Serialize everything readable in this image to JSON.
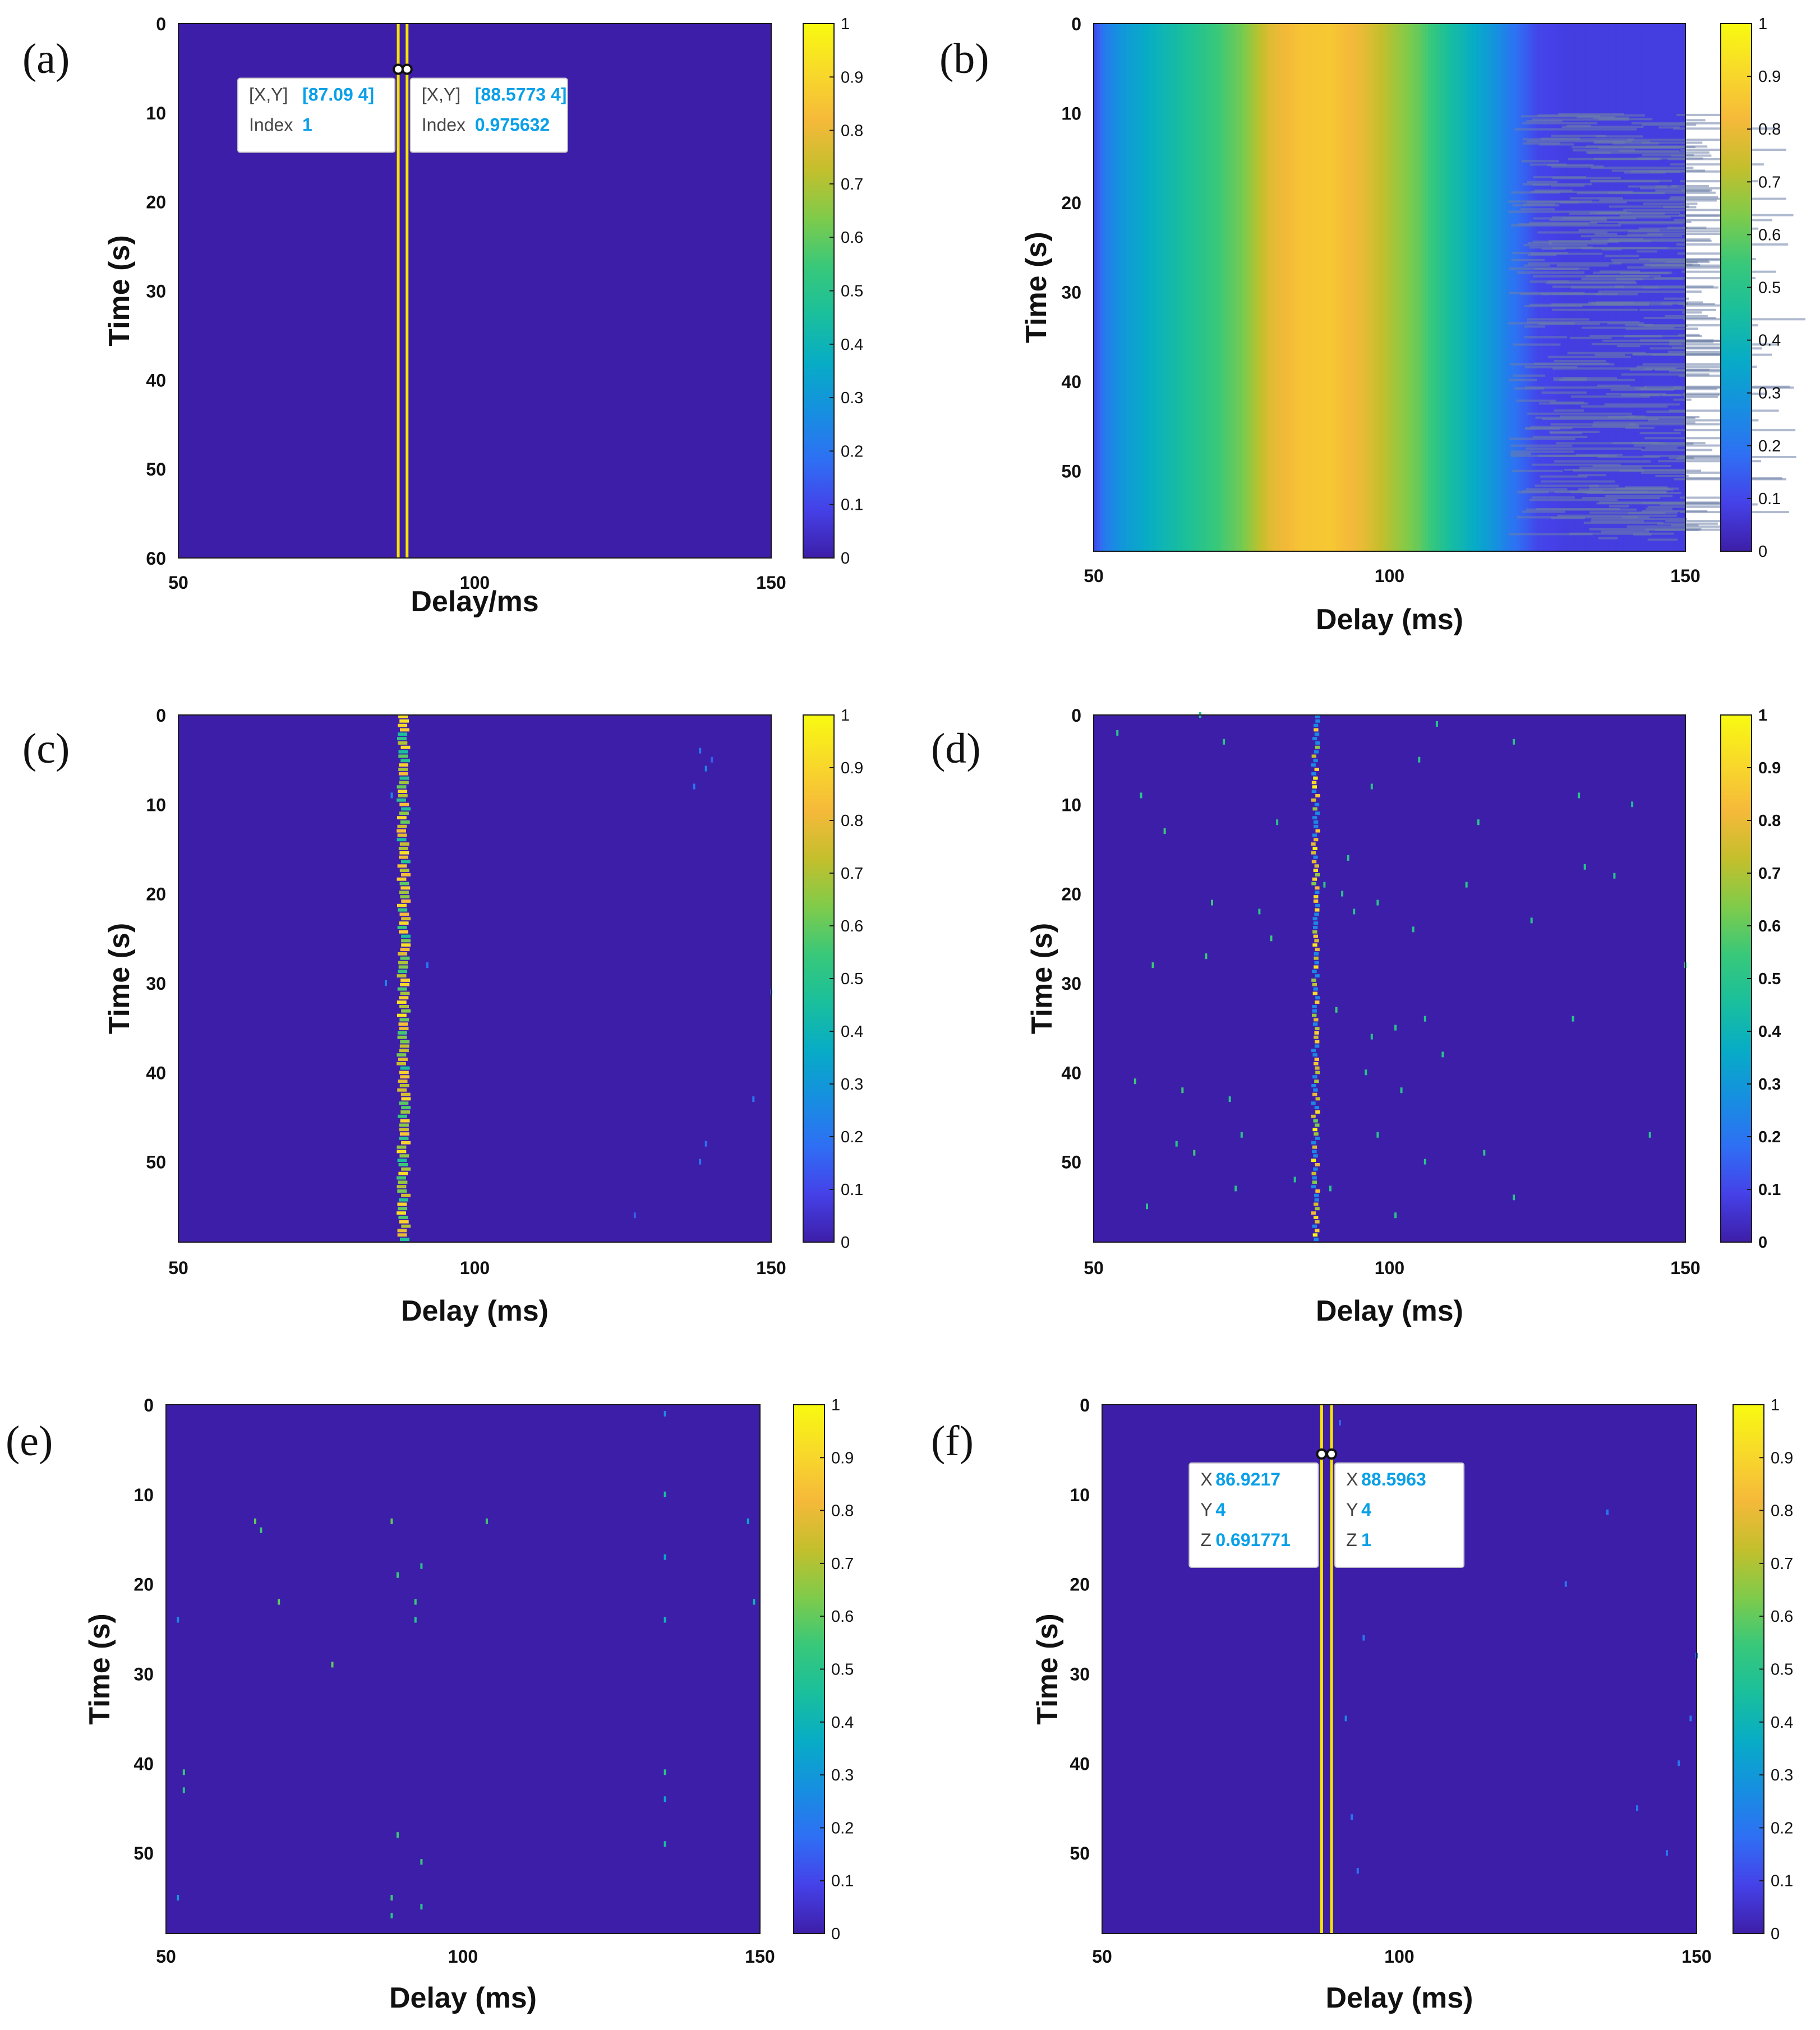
{
  "colors": {
    "background": "#3d1ea8",
    "frame": "#1a1a1a",
    "tooltip_value": "#0aa0e8",
    "tooltip_key": "#444444",
    "marker_line": "#f5e600"
  },
  "colormap": [
    "#3d1ea8",
    "#4541e8",
    "#2f6ff4",
    "#168fe0",
    "#07acc6",
    "#1abf9c",
    "#38c87a",
    "#7fcb4a",
    "#c4bf2c",
    "#f5b93a",
    "#f8d92a",
    "#f8fa10"
  ],
  "chart_data": [
    {
      "panel": "(a)",
      "type": "heatmap",
      "xlabel": "Delay/ms",
      "ylabel": "Time (s)",
      "xlim": [
        50,
        150
      ],
      "ylim": [
        0,
        60
      ],
      "xticks": [
        "50",
        "100",
        "150"
      ],
      "yticks": [
        "0",
        "10",
        "20",
        "30",
        "40",
        "50",
        "60"
      ],
      "colorbar": {
        "range": [
          0,
          1
        ],
        "ticks": [
          "0",
          "0.1",
          "0.2",
          "0.3",
          "0.4",
          "0.5",
          "0.6",
          "0.7",
          "0.8",
          "0.9",
          "1"
        ]
      },
      "peak_lines": [
        87.09,
        88.5773
      ],
      "datatips": [
        {
          "x": 87.09,
          "y": 4,
          "rows": [
            {
              "key": "[X,Y]",
              "val": "[87.09 4]"
            },
            {
              "key": "Index",
              "val": "1"
            }
          ]
        },
        {
          "x": 88.5773,
          "y": 4,
          "rows": [
            {
              "key": "[X,Y]",
              "val": "[88.5773 4]"
            },
            {
              "key": "Index",
              "val": "0.975632"
            }
          ]
        }
      ]
    },
    {
      "panel": "(b)",
      "type": "heatmap",
      "xlabel": "Delay (ms)",
      "ylabel": "Time (s)",
      "xlim": [
        50,
        150
      ],
      "ylim": [
        0,
        59
      ],
      "xticks": [
        "50",
        "100",
        "150"
      ],
      "yticks": [
        "0",
        "10",
        "20",
        "30",
        "40",
        "50"
      ],
      "colorbar": {
        "range": [
          0,
          1
        ],
        "ticks": [
          "0",
          "0.1",
          "0.2",
          "0.3",
          "0.4",
          "0.5",
          "0.6",
          "0.7",
          "0.8",
          "0.9",
          "1"
        ]
      },
      "profile": {
        "delay": [
          50,
          52,
          55,
          60,
          65,
          70,
          75,
          80,
          85,
          90,
          95,
          100,
          105,
          110,
          115,
          118,
          120,
          125,
          130,
          150
        ],
        "value": [
          0.1,
          0.22,
          0.3,
          0.38,
          0.45,
          0.53,
          0.62,
          0.78,
          0.85,
          0.86,
          0.8,
          0.7,
          0.6,
          0.45,
          0.35,
          0.28,
          0.22,
          0.1,
          0.08,
          0.08
        ]
      }
    },
    {
      "panel": "(c)",
      "type": "heatmap",
      "xlabel": "Delay (ms)",
      "ylabel": "Time (s)",
      "xlim": [
        50,
        150
      ],
      "ylim": [
        0,
        59
      ],
      "xticks": [
        "50",
        "100",
        "150"
      ],
      "yticks": [
        "0",
        "10",
        "20",
        "30",
        "40",
        "50"
      ],
      "colorbar": {
        "range": [
          0,
          1
        ],
        "ticks": [
          "0",
          "0.1",
          "0.2",
          "0.3",
          "0.4",
          "0.5",
          "0.6",
          "0.7",
          "0.8",
          "0.9",
          "1"
        ]
      },
      "ridge": {
        "center": 88,
        "width": 1.6
      },
      "points": [
        [
          138,
          4,
          0.2
        ],
        [
          139,
          6,
          0.25
        ],
        [
          137,
          8,
          0.2
        ],
        [
          140,
          5,
          0.15
        ],
        [
          92,
          28,
          0.2
        ],
        [
          139,
          48,
          0.18
        ],
        [
          138,
          50,
          0.2
        ],
        [
          147,
          43,
          0.2
        ],
        [
          150,
          31,
          0.15
        ],
        [
          86,
          9,
          0.25
        ],
        [
          85,
          30,
          0.25
        ],
        [
          127,
          56,
          0.15
        ]
      ]
    },
    {
      "panel": "(d)",
      "type": "heatmap",
      "xlabel": "Delay (ms)",
      "ylabel": "Time (s)",
      "xlim": [
        50,
        150
      ],
      "ylim": [
        0,
        59
      ],
      "xticks": [
        "50",
        "100",
        "150"
      ],
      "yticks": [
        "0",
        "10",
        "20",
        "30",
        "40",
        "50"
      ],
      "colorbar": {
        "range": [
          0,
          1
        ],
        "ticks": [
          "0",
          "0.1",
          "0.2",
          "0.3",
          "0.4",
          "0.5",
          "0.6",
          "0.7",
          "0.8",
          "0.9",
          "1"
        ]
      },
      "ridge": {
        "center": 87.5,
        "width": 0.8
      },
      "points": [
        [
          54,
          2,
          0.5
        ],
        [
          68,
          0,
          0.5
        ],
        [
          72,
          3,
          0.5
        ],
        [
          58,
          9,
          0.5
        ],
        [
          62,
          13,
          0.55
        ],
        [
          81,
          12,
          0.5
        ],
        [
          93,
          16,
          0.5
        ],
        [
          97,
          8,
          0.5
        ],
        [
          105,
          5,
          0.5
        ],
        [
          108,
          1,
          0.5
        ],
        [
          115,
          12,
          0.5
        ],
        [
          121,
          3,
          0.5
        ],
        [
          132,
          9,
          0.5
        ],
        [
          141,
          10,
          0.45
        ],
        [
          70,
          21,
          0.55
        ],
        [
          78,
          22,
          0.5
        ],
        [
          80,
          25,
          0.55
        ],
        [
          89,
          19,
          0.5
        ],
        [
          92,
          20,
          0.5
        ],
        [
          94,
          22,
          0.5
        ],
        [
          98,
          21,
          0.5
        ],
        [
          104,
          24,
          0.5
        ],
        [
          113,
          19,
          0.5
        ],
        [
          124,
          23,
          0.5
        ],
        [
          133,
          17,
          0.5
        ],
        [
          138,
          18,
          0.5
        ],
        [
          60,
          28,
          0.55
        ],
        [
          69,
          27,
          0.55
        ],
        [
          91,
          33,
          0.55
        ],
        [
          97,
          36,
          0.5
        ],
        [
          101,
          35,
          0.5
        ],
        [
          106,
          34,
          0.5
        ],
        [
          131,
          34,
          0.5
        ],
        [
          150,
          28,
          0.5
        ],
        [
          57,
          41,
          0.55
        ],
        [
          65,
          42,
          0.55
        ],
        [
          73,
          43,
          0.5
        ],
        [
          96,
          40,
          0.5
        ],
        [
          102,
          42,
          0.5
        ],
        [
          109,
          38,
          0.5
        ],
        [
          64,
          48,
          0.5
        ],
        [
          67,
          49,
          0.55
        ],
        [
          75,
          47,
          0.5
        ],
        [
          84,
          52,
          0.5
        ],
        [
          90,
          53,
          0.5
        ],
        [
          98,
          47,
          0.5
        ],
        [
          106,
          50,
          0.5
        ],
        [
          116,
          49,
          0.5
        ],
        [
          144,
          47,
          0.5
        ],
        [
          59,
          55,
          0.5
        ],
        [
          74,
          53,
          0.5
        ],
        [
          101,
          56,
          0.5
        ],
        [
          121,
          54,
          0.5
        ]
      ]
    },
    {
      "panel": "(e)",
      "type": "heatmap",
      "xlabel": "Delay (ms)",
      "ylabel": "Time (s)",
      "xlim": [
        50,
        150
      ],
      "ylim": [
        0,
        59
      ],
      "xticks": [
        "50",
        "100",
        "150"
      ],
      "yticks": [
        "0",
        "10",
        "20",
        "30",
        "40",
        "50"
      ],
      "colorbar": {
        "range": [
          0,
          1
        ],
        "ticks": [
          "0",
          "0.1",
          "0.2",
          "0.3",
          "0.4",
          "0.5",
          "0.6",
          "0.7",
          "0.8",
          "0.9",
          "1"
        ]
      },
      "points": [
        [
          134,
          1,
          0.25
        ],
        [
          134,
          10,
          0.45
        ],
        [
          134,
          17,
          0.35
        ],
        [
          134,
          24,
          0.4
        ],
        [
          134,
          41,
          0.5
        ],
        [
          134,
          44,
          0.35
        ],
        [
          134,
          49,
          0.45
        ],
        [
          88,
          13,
          0.6
        ],
        [
          104,
          13,
          0.55
        ],
        [
          65,
          13,
          0.6
        ],
        [
          66,
          14,
          0.55
        ],
        [
          69,
          22,
          0.6
        ],
        [
          89,
          19,
          0.55
        ],
        [
          93,
          18,
          0.5
        ],
        [
          92,
          22,
          0.55
        ],
        [
          92,
          24,
          0.5
        ],
        [
          78,
          29,
          0.6
        ],
        [
          53,
          41,
          0.55
        ],
        [
          53,
          43,
          0.5
        ],
        [
          148,
          13,
          0.35
        ],
        [
          149,
          22,
          0.4
        ],
        [
          89,
          48,
          0.55
        ],
        [
          93,
          51,
          0.55
        ],
        [
          88,
          55,
          0.55
        ],
        [
          88,
          57,
          0.5
        ],
        [
          93,
          56,
          0.5
        ],
        [
          52,
          24,
          0.25
        ],
        [
          52,
          55,
          0.3
        ]
      ]
    },
    {
      "panel": "(f)",
      "type": "heatmap",
      "xlabel": "Delay (ms)",
      "ylabel": "Time (s)",
      "xlim": [
        50,
        150
      ],
      "ylim": [
        0,
        59
      ],
      "xticks": [
        "50",
        "100",
        "150"
      ],
      "yticks": [
        "0",
        "10",
        "20",
        "30",
        "40",
        "50"
      ],
      "colorbar": {
        "range": [
          0,
          1
        ],
        "ticks": [
          "0",
          "0.1",
          "0.2",
          "0.3",
          "0.4",
          "0.5",
          "0.6",
          "0.7",
          "0.8",
          "0.9",
          "1"
        ]
      },
      "peak_lines": [
        86.9217,
        88.5963
      ],
      "points": [
        [
          91,
          35,
          0.25
        ],
        [
          92,
          46,
          0.2
        ],
        [
          150,
          28,
          0.25
        ],
        [
          149,
          35,
          0.2
        ],
        [
          147,
          40,
          0.2
        ],
        [
          140,
          45,
          0.2
        ],
        [
          145,
          50,
          0.2
        ],
        [
          135,
          12,
          0.2
        ],
        [
          128,
          20,
          0.2
        ],
        [
          94,
          26,
          0.2
        ],
        [
          90,
          2,
          0.15
        ],
        [
          93,
          52,
          0.2
        ]
      ],
      "datatips": [
        {
          "x": 86.9217,
          "y": 4,
          "rows": [
            {
              "key": "X",
              "val": "86.9217"
            },
            {
              "key": "Y",
              "val": "4"
            },
            {
              "key": "Z",
              "val": "0.691771"
            }
          ]
        },
        {
          "x": 88.5963,
          "y": 4,
          "rows": [
            {
              "key": "X",
              "val": "88.5963"
            },
            {
              "key": "Y",
              "val": "4"
            },
            {
              "key": "Z",
              "val": "1"
            }
          ]
        }
      ]
    }
  ]
}
